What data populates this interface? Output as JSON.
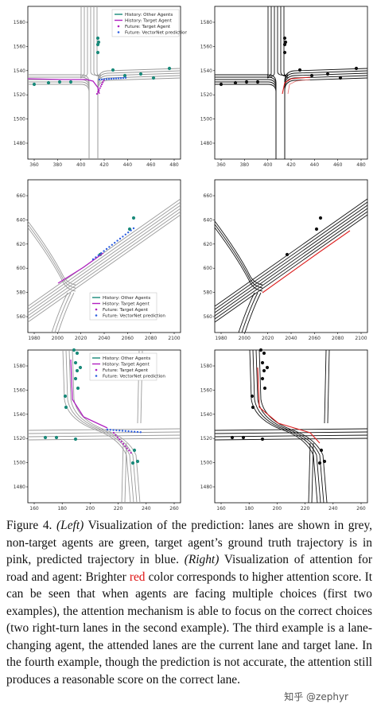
{
  "figure": {
    "panels": [
      {
        "id": "p1",
        "side": "left",
        "x_ticks": [
          "360",
          "380",
          "400",
          "420",
          "440",
          "460",
          "480"
        ],
        "y_ticks": [
          "1580",
          "1560",
          "1540",
          "1520",
          "1500",
          "1480"
        ],
        "legend": [
          "History: Other Agents",
          "History: Target Agent",
          "Future: Target Agent",
          "Future: VectorNet prediction"
        ]
      },
      {
        "id": "p2",
        "side": "right",
        "x_ticks": [
          "360",
          "380",
          "400",
          "420",
          "440",
          "460",
          "480"
        ],
        "y_ticks": [
          "1580",
          "1560",
          "1540",
          "1520",
          "1500",
          "1480"
        ]
      },
      {
        "id": "p3",
        "side": "left",
        "x_ticks": [
          "1980",
          "2000",
          "2020",
          "2040",
          "2060",
          "2080",
          "2100"
        ],
        "y_ticks": [
          "660",
          "640",
          "620",
          "600",
          "580",
          "560"
        ],
        "legend": [
          "History: Other Agents",
          "History: Target Agent",
          "Future: Target Agent",
          "Future: VectorNet prediction"
        ]
      },
      {
        "id": "p4",
        "side": "right",
        "x_ticks": [
          "1980",
          "2000",
          "2020",
          "2040",
          "2060",
          "2080",
          "2100"
        ],
        "y_ticks": [
          "660",
          "640",
          "620",
          "600",
          "580",
          "560"
        ]
      },
      {
        "id": "p5",
        "side": "left",
        "x_ticks": [
          "160",
          "180",
          "200",
          "220",
          "240",
          "260"
        ],
        "y_ticks": [
          "1580",
          "1560",
          "1540",
          "1520",
          "1500",
          "1480"
        ],
        "legend": [
          "History: Other Agents",
          "History: Target Agent",
          "Future: Target Agent",
          "Future: VectorNet prediction"
        ]
      },
      {
        "id": "p6",
        "side": "right",
        "x_ticks": [
          "160",
          "180",
          "200",
          "220",
          "240",
          "260"
        ],
        "y_ticks": [
          "1580",
          "1560",
          "1540",
          "1520",
          "1500",
          "1480"
        ]
      }
    ],
    "colors": {
      "lane_left": "#9a9a9a",
      "lane_right": "#111111",
      "agent_other": "#1a8a7a",
      "target_history": "#b020c0",
      "prediction": "#3060e0",
      "attention": "#dd2222",
      "agent_right": "#111111"
    }
  },
  "caption": {
    "label": "Figure 4.",
    "left_tag": "(Left)",
    "part1": " Visualization of the prediction: lanes are shown in grey, non-target agents are green, target agent’s ground truth trajectory is in pink, predicted trajectory in blue. ",
    "right_tag": "(Right)",
    "part2": " Visualization of attention for road and agent: Brighter ",
    "red_word": "red",
    "part3": " color corresponds to higher attention score. It can be seen that when agents are facing multiple choices (first two examples), the attention mechanism is able to focus on the correct choices (two right-turn lanes in the second example). The third example is a lane-changing agent, the attended lanes are the current lane and target lane. In the fourth example, though the prediction is not accurate, the attention still produces a reasonable score on the correct lane."
  },
  "watermark": "知乎 @zephyr"
}
